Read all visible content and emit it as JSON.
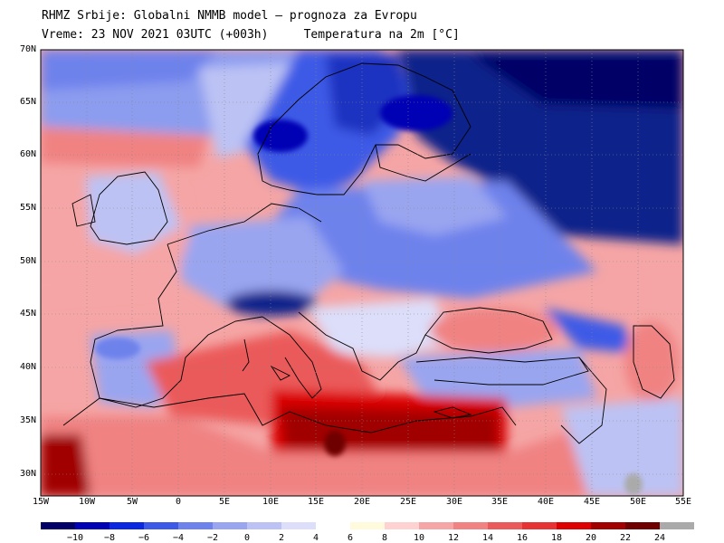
{
  "header": {
    "line1": "RHMZ Srbije: Globalni NMMB model — prognoza za Evropu",
    "time": "Vreme: 23 NOV 2021 03UTC (+003h)",
    "field": "Temperatura na 2m [°C]"
  },
  "axes": {
    "lat_labels": [
      "70N",
      "65N",
      "60N",
      "55N",
      "50N",
      "45N",
      "40N",
      "35N",
      "30N"
    ],
    "lon_labels": [
      "15W",
      "10W",
      "5W",
      "0",
      "5E",
      "10E",
      "15E",
      "20E",
      "25E",
      "30E",
      "35E",
      "40E",
      "45E",
      "50E",
      "55E"
    ]
  },
  "colorbar": {
    "labels": [
      "−10",
      "−8",
      "−6",
      "−4",
      "−2",
      "0",
      "2",
      "4",
      "6",
      "8",
      "10",
      "12",
      "14",
      "16",
      "18",
      "20",
      "22",
      "24"
    ],
    "colors": [
      "#000066",
      "#0000b4",
      "#0a28e0",
      "#3c5ae6",
      "#6e82ec",
      "#9aa5f0",
      "#bcc2f4",
      "#dcdefa",
      "#ffffff",
      "#fffadc",
      "#ffd2d2",
      "#f5a5a5",
      "#f08282",
      "#eb5a5a",
      "#e63232",
      "#dc0000",
      "#a00000",
      "#6e0000",
      "#aaaaaa"
    ]
  },
  "colors": {
    "cold": "#10208a",
    "cool": "#3c5ae6",
    "mild": "#bcc2f4",
    "warm": "#f08282",
    "hot": "#dc0000",
    "very_hot": "#8c0000",
    "land_border": "#000000",
    "grid": "#888888"
  }
}
